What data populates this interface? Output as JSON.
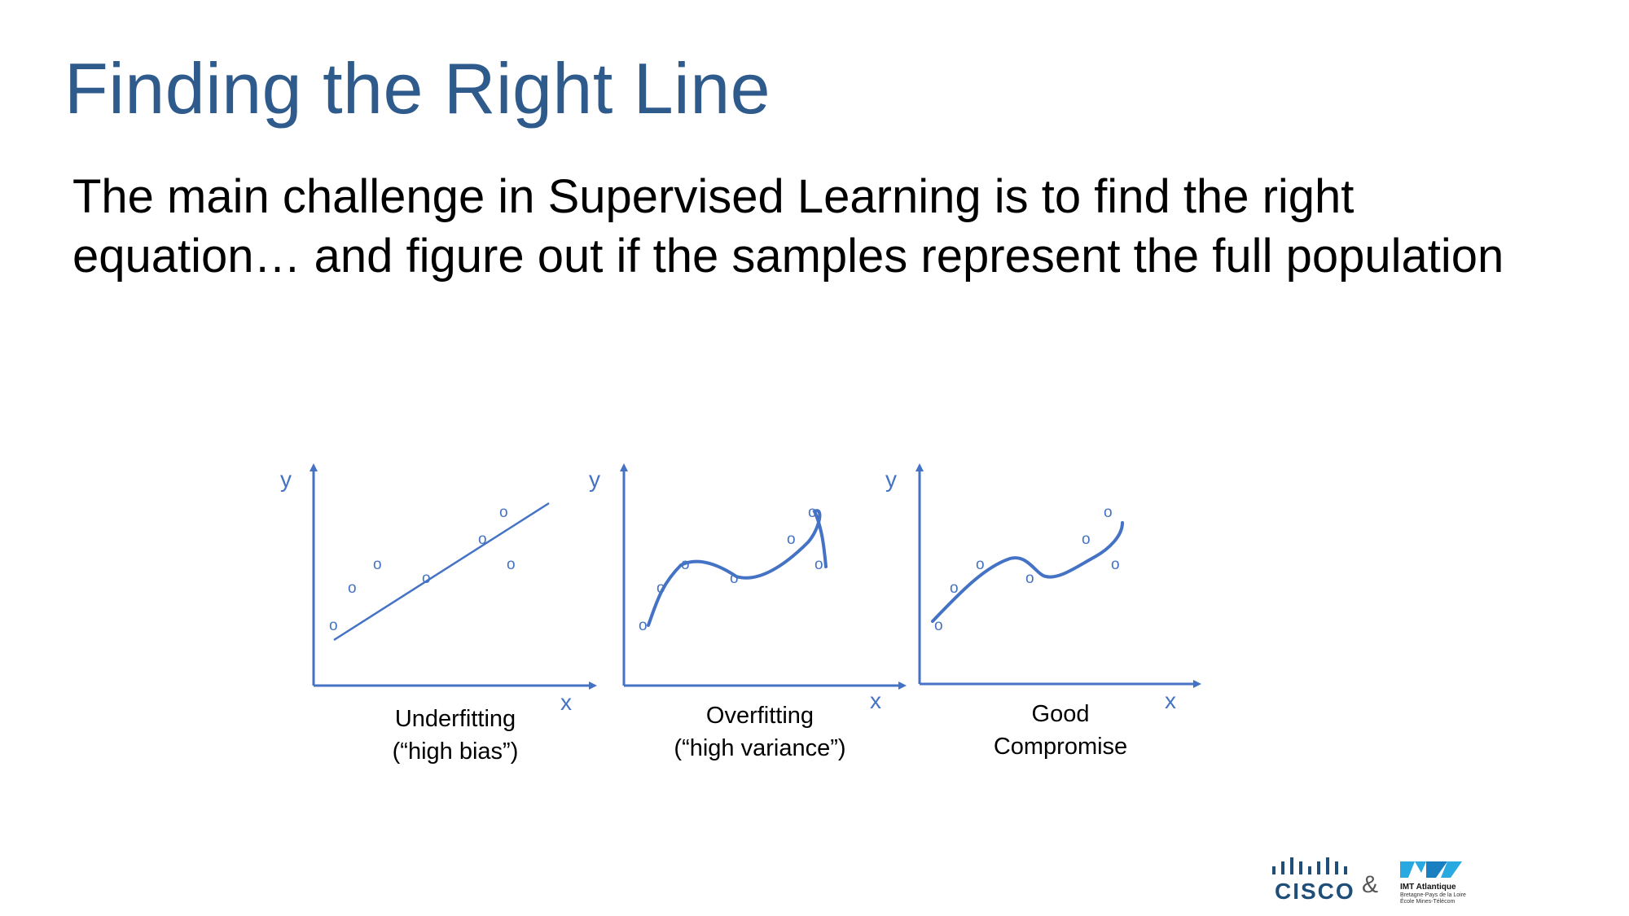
{
  "slide": {
    "title": "Finding the Right Line",
    "body": "The main challenge in Supervised Learning is to find the right equation… and figure out if the samples represent the full population"
  },
  "colors": {
    "title": "#2e5a8c",
    "diagram": "#4472c4",
    "text": "#000000"
  },
  "diagram": {
    "panels": [
      {
        "id": "underfitting",
        "x_label": "x",
        "y_label": "y",
        "sample_marker": "o",
        "caption_lines": [
          "Underfitting",
          "(“high bias”)"
        ],
        "fit_type": "straight-line"
      },
      {
        "id": "overfitting",
        "x_label": "x",
        "y_label": "y",
        "sample_marker": "o",
        "caption_lines": [
          "Overfitting",
          "(“high variance”)"
        ],
        "fit_type": "curve-through-every-sample"
      },
      {
        "id": "good-compromise",
        "x_label": "x",
        "y_label": "y",
        "sample_marker": "o",
        "caption_lines": [
          "Good",
          "Compromise"
        ],
        "fit_type": "smooth-curve"
      }
    ]
  },
  "footer": {
    "cisco_logo_text": "CISCO",
    "separator": "&",
    "imt_name": "IMT Atlantique",
    "imt_sub_1": "Bretagne-Pays de la Loire",
    "imt_sub_2": "École Mines-Télécom",
    "logo_icons": [
      "cisco-bridge-icon",
      "imt-atlantique-mark-icon"
    ]
  }
}
